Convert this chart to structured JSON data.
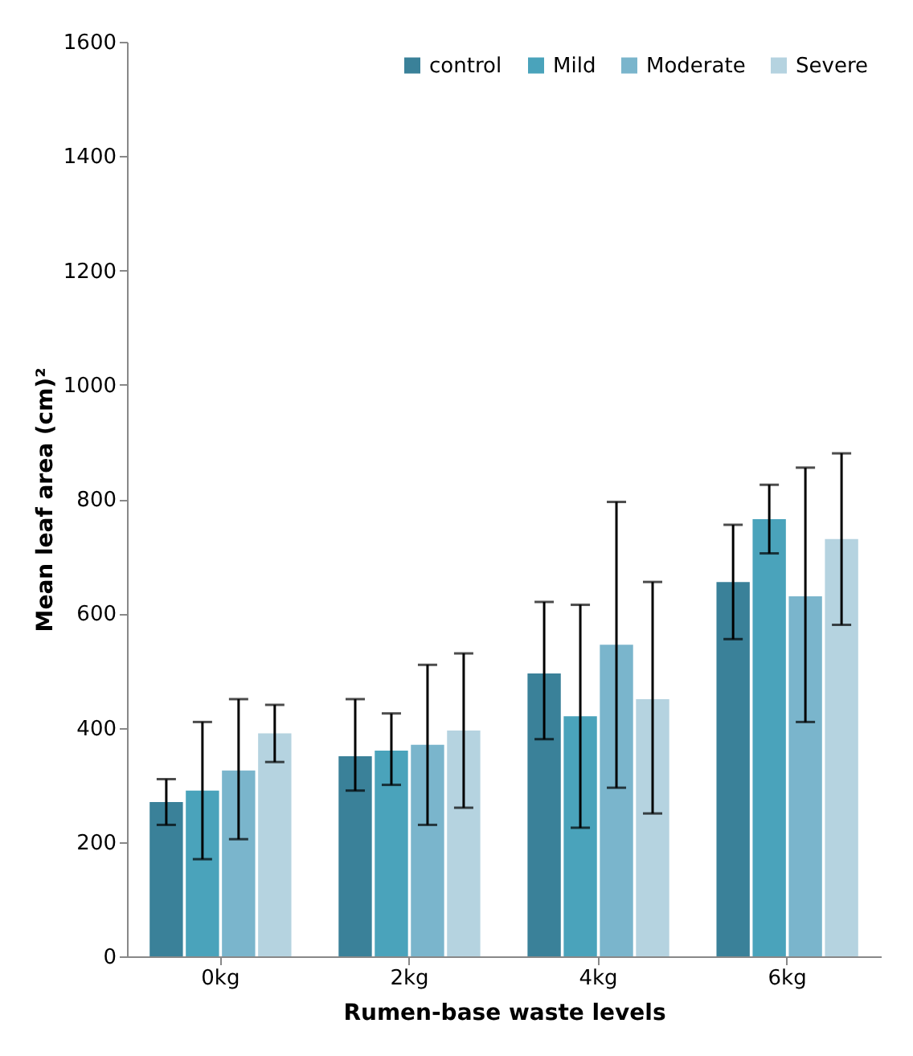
{
  "chart_data": {
    "type": "bar",
    "xlabel": "Rumen-base waste levels",
    "ylabel": "Mean leaf area  (cm)²",
    "categories": [
      "0kg",
      "2kg",
      "4kg",
      "6kg"
    ],
    "series": [
      {
        "name": "control",
        "color": "#3a8199",
        "values": [
          270,
          350,
          495,
          655
        ],
        "errors": [
          [
            230,
            310
          ],
          [
            290,
            450
          ],
          [
            380,
            620
          ],
          [
            555,
            755
          ]
        ]
      },
      {
        "name": "Mild",
        "color": "#4aa3bb",
        "values": [
          290,
          360,
          420,
          765
        ],
        "errors": [
          [
            170,
            410
          ],
          [
            300,
            425
          ],
          [
            225,
            615
          ],
          [
            705,
            825
          ]
        ]
      },
      {
        "name": "Moderate",
        "color": "#7ab5cc",
        "values": [
          325,
          370,
          545,
          630
        ],
        "errors": [
          [
            205,
            450
          ],
          [
            230,
            510
          ],
          [
            295,
            795
          ],
          [
            410,
            855
          ]
        ]
      },
      {
        "name": "Severe",
        "color": "#b5d3e0",
        "values": [
          390,
          395,
          450,
          730
        ],
        "errors": [
          [
            340,
            440
          ],
          [
            260,
            530
          ],
          [
            250,
            655
          ],
          [
            580,
            880
          ]
        ]
      }
    ],
    "ylim": [
      0,
      1600
    ],
    "yticks": [
      0,
      200,
      400,
      600,
      800,
      1000,
      1200,
      1400,
      1600
    ],
    "grid": false,
    "legend": "top right"
  }
}
